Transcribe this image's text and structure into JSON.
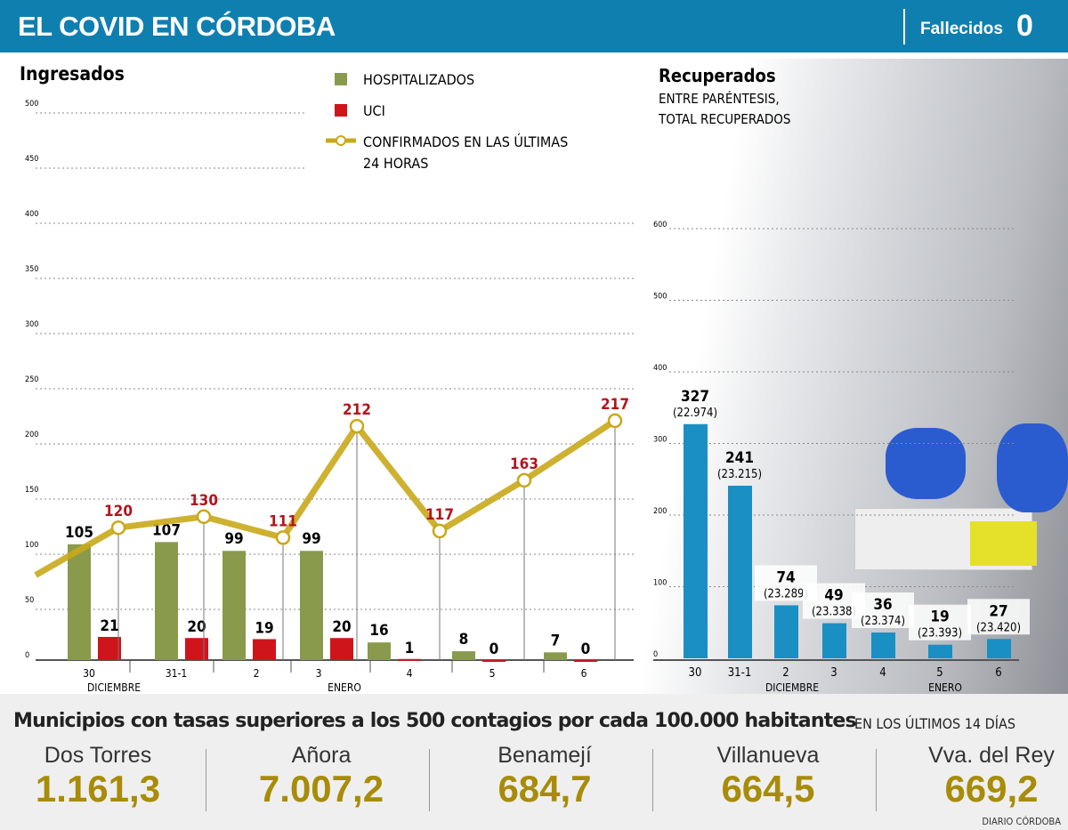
{
  "header": {
    "title": "EL COVID EN CÓRDOBA",
    "deaths_label": "Fallecidos",
    "deaths_value": "0"
  },
  "chart_data": [
    {
      "type": "bar+line",
      "title": "Ingresados",
      "categories": [
        "30",
        "31-1",
        "2",
        "3",
        "4",
        "5",
        "6"
      ],
      "month_labels": [
        "DICIEMBRE",
        "ENERO"
      ],
      "ylim": [
        0,
        500
      ],
      "yticks": [
        0,
        50,
        100,
        150,
        200,
        250,
        300,
        350,
        400,
        450,
        500
      ],
      "grid": true,
      "legend": "top-center",
      "legend_entries": [
        "HOSPITALIZADOS",
        "UCI",
        "CONFIRMADOS EN LAS ÚLTIMAS",
        "24 HORAS"
      ],
      "series": [
        {
          "name": "HOSPITALIZADOS",
          "type": "bar",
          "color": "#8a9a4c",
          "values": [
            105,
            107,
            99,
            99,
            16,
            8,
            7
          ]
        },
        {
          "name": "UCI",
          "type": "bar",
          "color": "#d0141c",
          "values": [
            21,
            20,
            19,
            20,
            1,
            0,
            0
          ]
        },
        {
          "name": "CONFIRMADOS EN LAS ÚLTIMAS 24 HORAS",
          "type": "line",
          "color": "#c9a81a",
          "values": [
            120,
            130,
            111,
            212,
            117,
            163,
            217
          ],
          "previous_value": 77
        }
      ]
    },
    {
      "type": "bar",
      "title": "Recuperados",
      "subtitle": [
        "ENTRE PARÉNTESIS,",
        "TOTAL RECUPERADOS"
      ],
      "categories": [
        "30",
        "31-1",
        "2",
        "3",
        "4",
        "5",
        "6"
      ],
      "month_labels": [
        "DICIEMBRE",
        "ENERO"
      ],
      "ylim": [
        0,
        600
      ],
      "yticks": [
        0,
        100,
        200,
        300,
        400,
        500,
        600
      ],
      "grid": true,
      "color": "#1a8fc4",
      "values": [
        327,
        241,
        74,
        49,
        36,
        19,
        27
      ],
      "totals": [
        "(22.974)",
        "(23.215)",
        "(23.289)",
        "(23.338)",
        "(23.374)",
        "(23.393)",
        "(23.420)"
      ]
    }
  ],
  "municipios": {
    "title": "Municipios con tasas superiores a los 500 contagios por cada 100.000 habitantes",
    "subtitle": "EN LOS ÚLTIMOS 14 DÍAS",
    "items": [
      {
        "name": "Dos Torres",
        "value": "1.161,3"
      },
      {
        "name": "Añora",
        "value": "7.007,2"
      },
      {
        "name": "Benamejí",
        "value": "684,7"
      },
      {
        "name": "Villanueva",
        "value": "664,5"
      },
      {
        "name": "Vva. del Rey",
        "value": "669,2"
      }
    ]
  },
  "source": "DIARIO CÓRDOBA"
}
